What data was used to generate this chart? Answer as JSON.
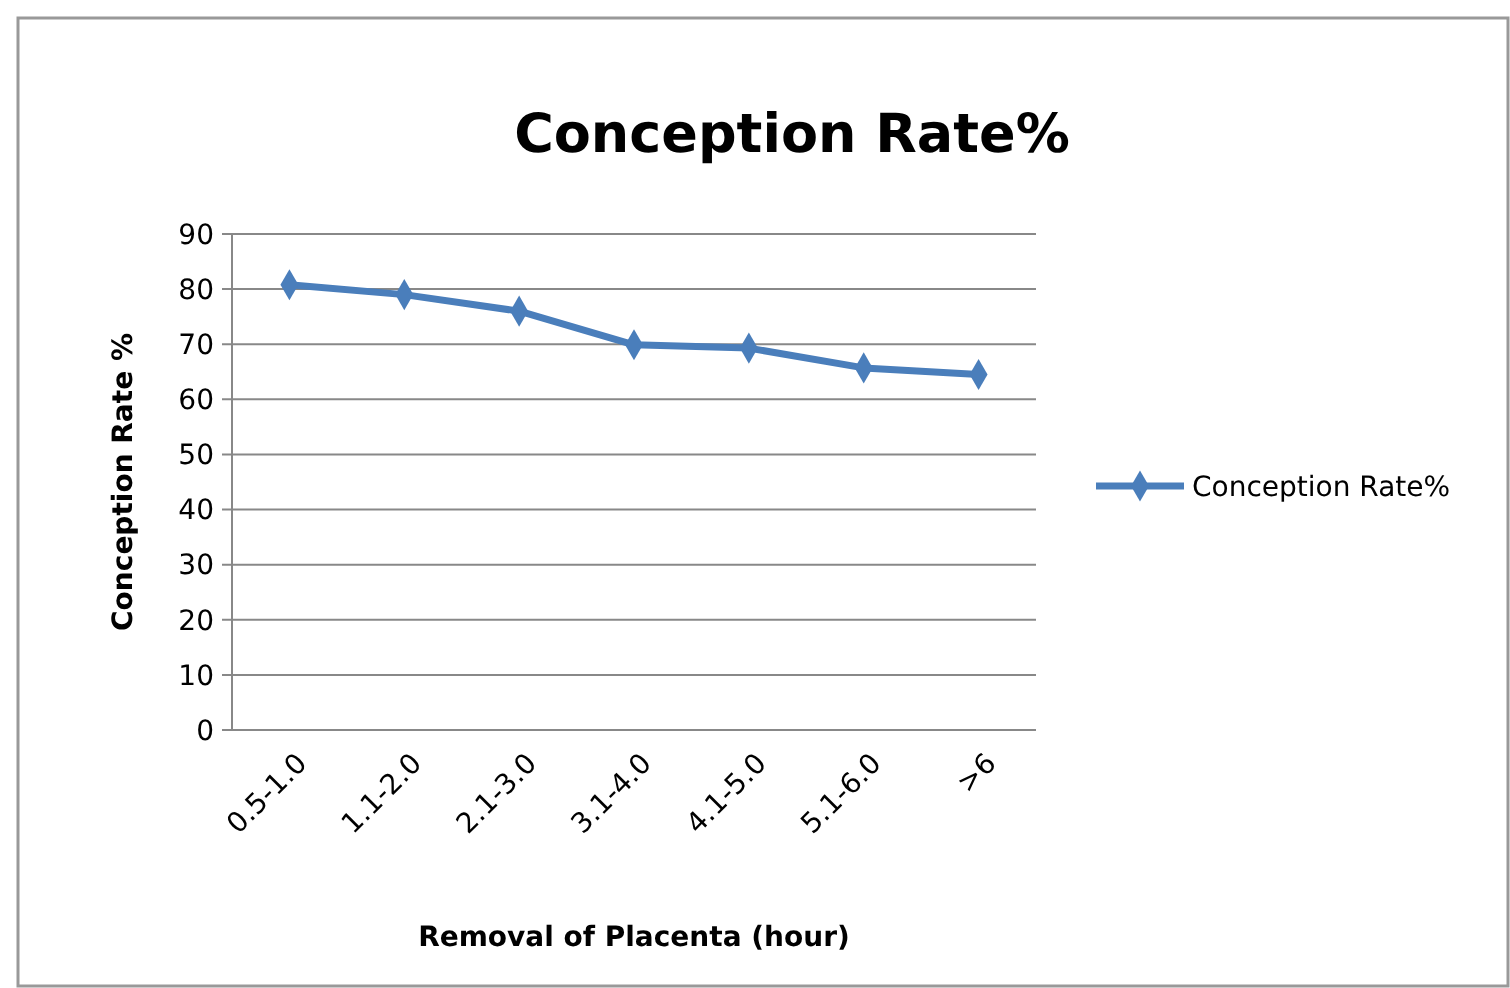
{
  "chart_data": {
    "type": "line",
    "title": "Conception Rate%",
    "xlabel": "Removal of Placenta (hour)",
    "ylabel": "Conception Rate %",
    "categories": [
      "0.5-1.0",
      "1.1-2.0",
      "2.1-3.0",
      "3.1-4.0",
      "4.1-5.0",
      "5.1-6.0",
      ">6"
    ],
    "series": [
      {
        "name": "Conception Rate%",
        "color": "#4a7ebb",
        "values": [
          80.8,
          79.0,
          76.0,
          69.9,
          69.3,
          65.7,
          64.5
        ]
      }
    ],
    "ylim": [
      0,
      90
    ],
    "yticks": [
      0,
      10,
      20,
      30,
      40,
      50,
      60,
      70,
      80,
      90
    ],
    "grid": "y",
    "legend": "right",
    "marker": "diamond",
    "line_style": "solid"
  }
}
